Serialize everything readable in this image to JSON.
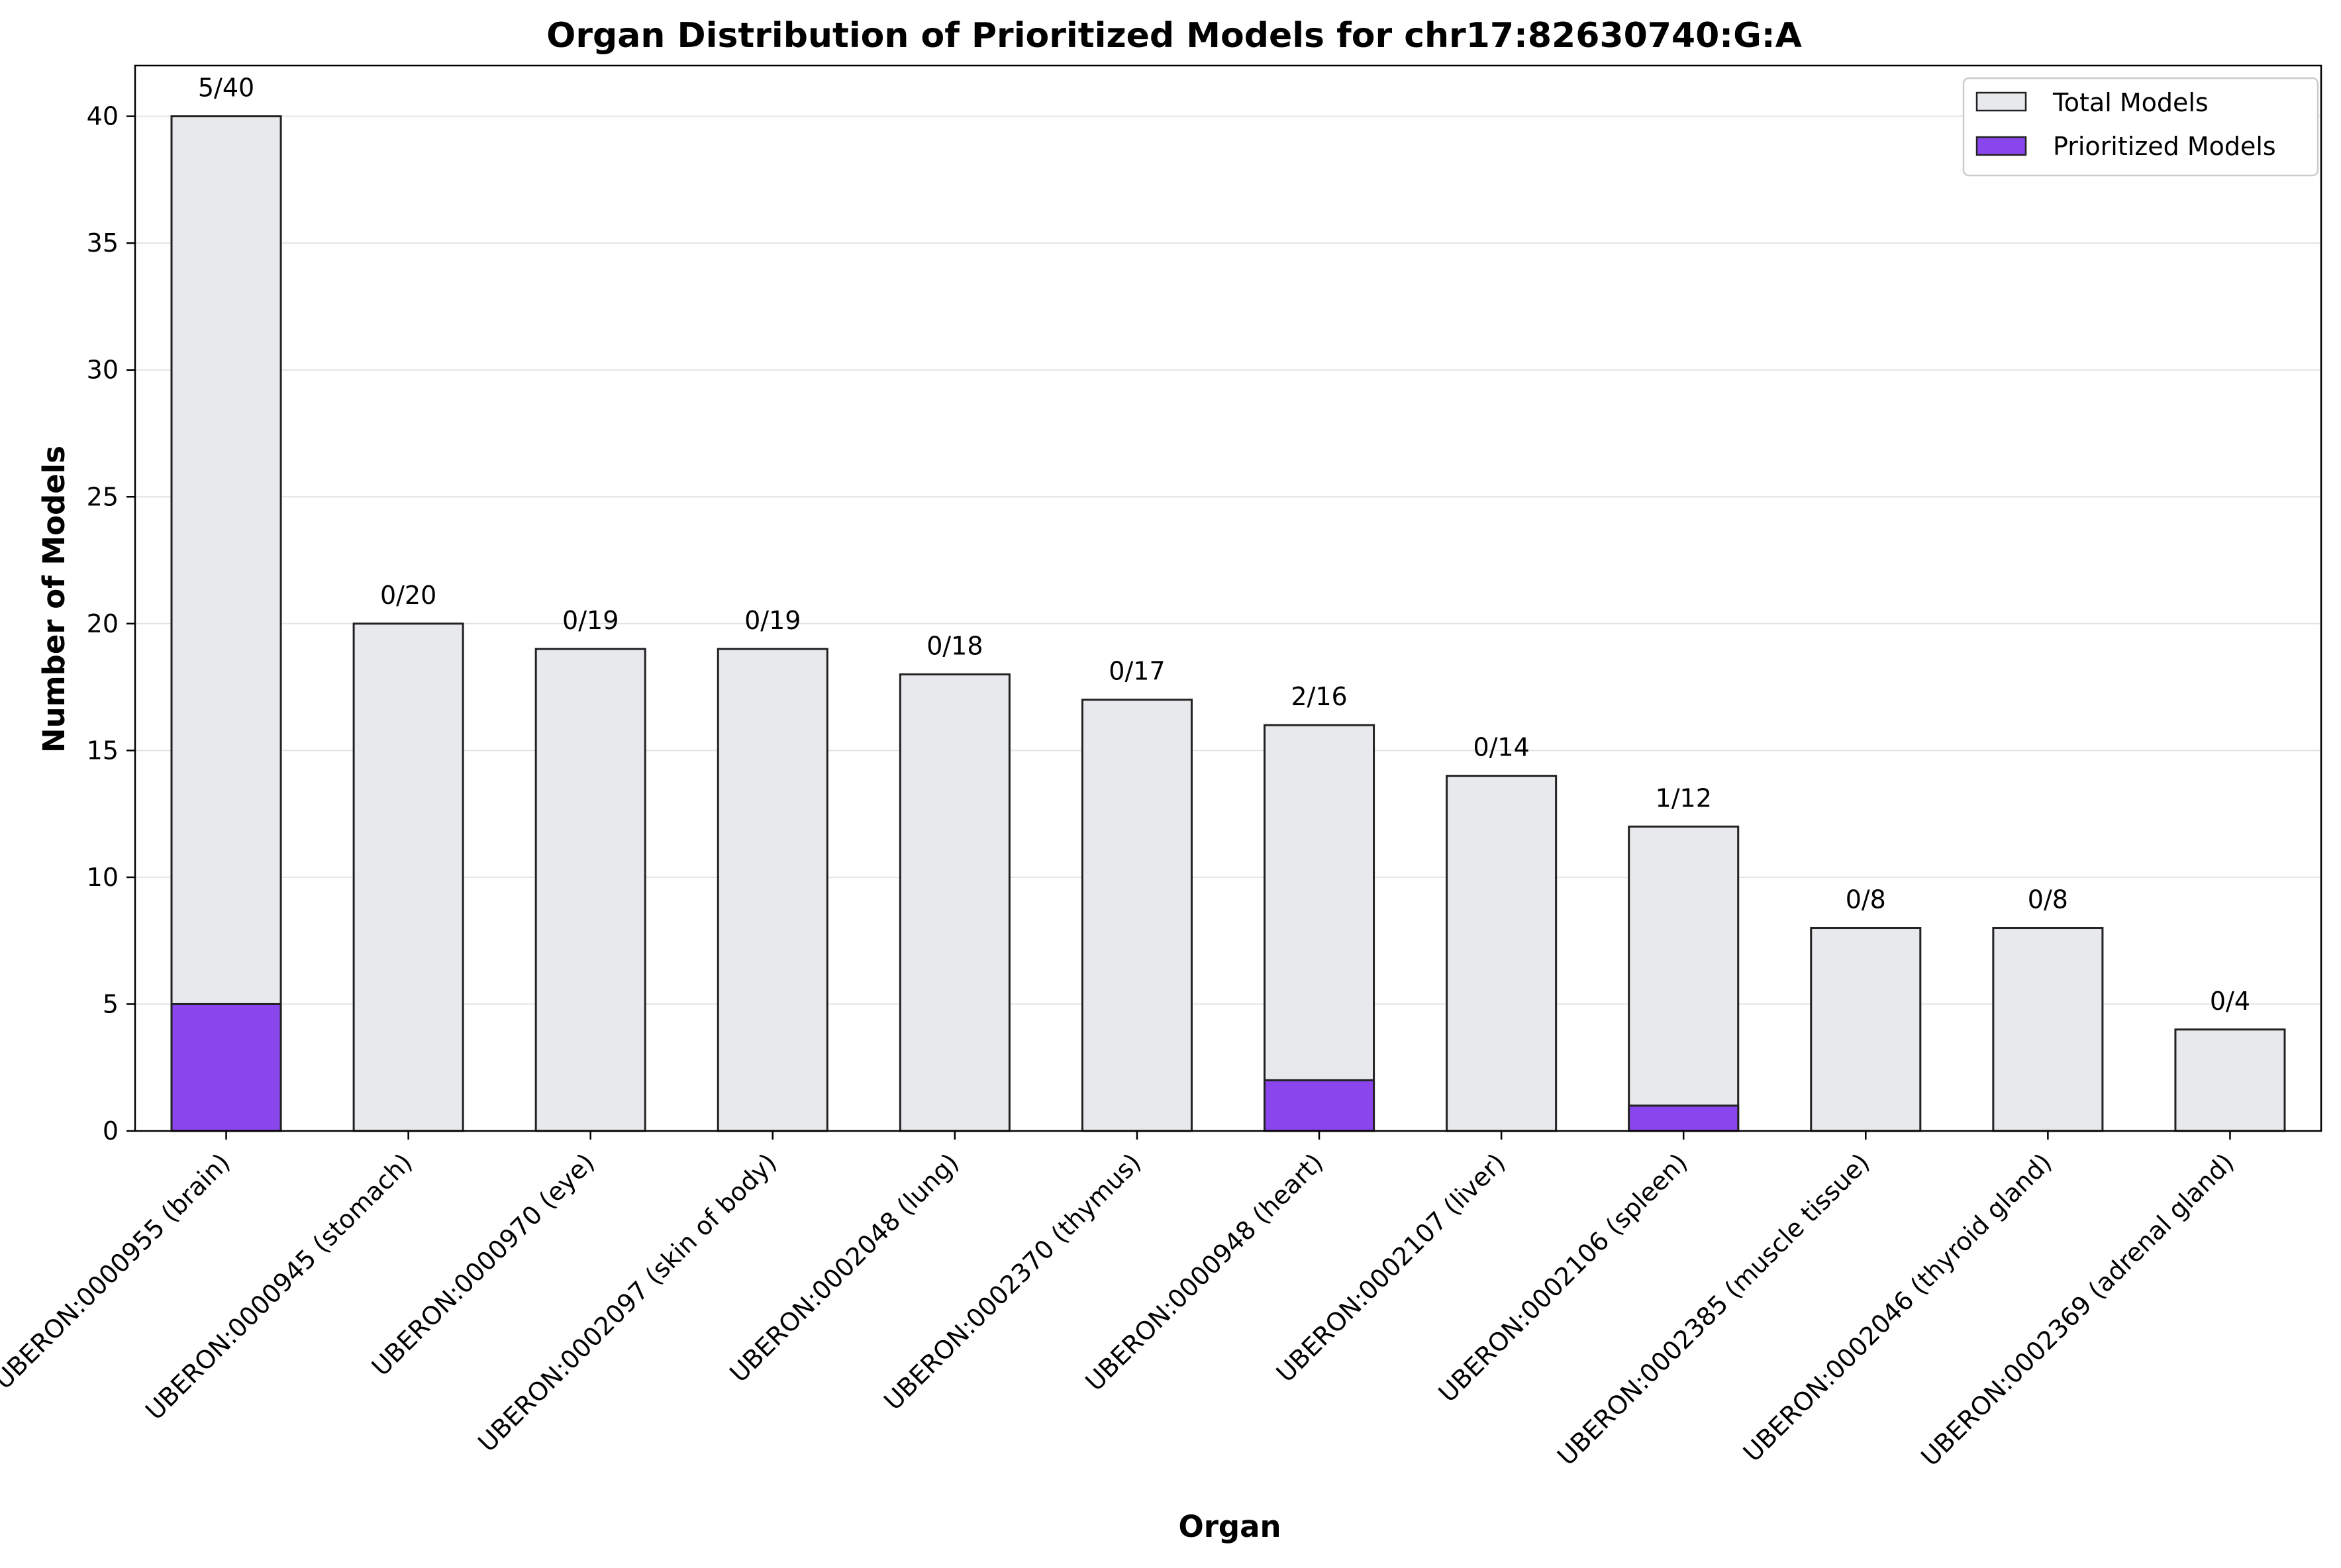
{
  "chart_data": {
    "type": "bar",
    "title": "Organ Distribution of Prioritized Models for chr17:82630740:G:A",
    "xlabel": "Organ",
    "ylabel": "Number of Models",
    "ylim": [
      0,
      42
    ],
    "yticks": [
      0,
      5,
      10,
      15,
      20,
      25,
      30,
      35,
      40
    ],
    "grid": "horizontal",
    "legend_position": "top-right",
    "categories": [
      "UBERON:0000955 (brain)",
      "UBERON:0000945 (stomach)",
      "UBERON:0000970 (eye)",
      "UBERON:0002097 (skin of body)",
      "UBERON:0002048 (lung)",
      "UBERON:0002370 (thymus)",
      "UBERON:0000948 (heart)",
      "UBERON:0002107 (liver)",
      "UBERON:0002106 (spleen)",
      "UBERON:0002385 (muscle tissue)",
      "UBERON:0002046 (thyroid gland)",
      "UBERON:0002369 (adrenal gland)"
    ],
    "series": [
      {
        "name": "Total Models",
        "color": "#e8e9ec",
        "values": [
          40,
          20,
          19,
          19,
          18,
          17,
          16,
          14,
          12,
          8,
          8,
          4
        ]
      },
      {
        "name": "Prioritized Models",
        "color": "#8a45ec",
        "values": [
          5,
          0,
          0,
          0,
          0,
          0,
          2,
          0,
          1,
          0,
          0,
          0
        ]
      }
    ],
    "bar_labels": [
      "5/40",
      "0/20",
      "0/19",
      "0/19",
      "0/18",
      "0/17",
      "2/16",
      "0/14",
      "1/12",
      "0/8",
      "0/8",
      "0/4"
    ]
  }
}
